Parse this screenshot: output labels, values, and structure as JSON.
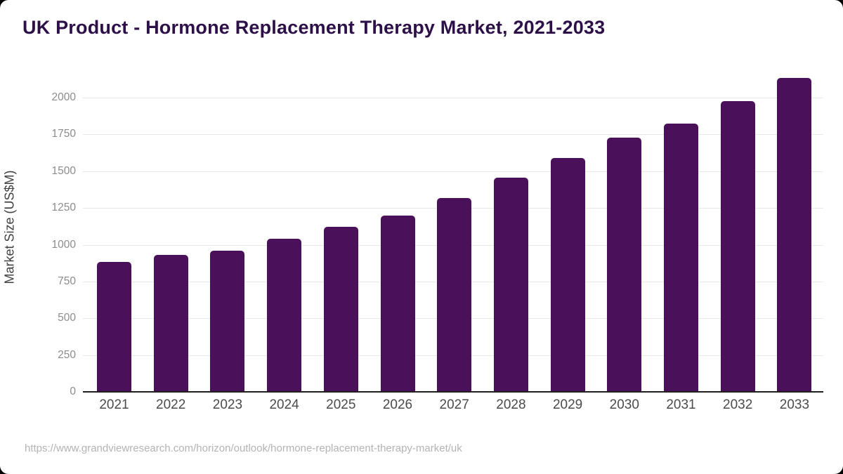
{
  "page": {
    "title": "UK Product - Hormone Replacement Therapy Market, 2021-2033",
    "source_url": "https://www.grandviewresearch.com/horizon/outlook/hormone-replacement-therapy-market/uk"
  },
  "colors": {
    "background": "#ffffff",
    "bar": "#4a1059",
    "title": "#2d1048",
    "grid": "#e8e8e8",
    "axis": "#1f1f1f",
    "ytick": "#8c8c8c",
    "xtick": "#4b4b4b",
    "ylabel": "#404040",
    "source": "#b3b3b3"
  },
  "chart_data": {
    "type": "bar",
    "title": "UK Product - Hormone Replacement Therapy Market, 2021-2033",
    "xlabel": "",
    "ylabel": "Market Size (US$M)",
    "categories": [
      "2021",
      "2022",
      "2023",
      "2024",
      "2025",
      "2026",
      "2027",
      "2028",
      "2029",
      "2030",
      "2031",
      "2032",
      "2033"
    ],
    "values": [
      885,
      930,
      962,
      1040,
      1122,
      1200,
      1320,
      1455,
      1590,
      1730,
      1826,
      1976,
      2134
    ],
    "yticks": [
      0,
      250,
      500,
      750,
      1000,
      1250,
      1500,
      1750,
      2000
    ],
    "ylim": [
      0,
      2150
    ],
    "grid": true,
    "legend": false
  }
}
